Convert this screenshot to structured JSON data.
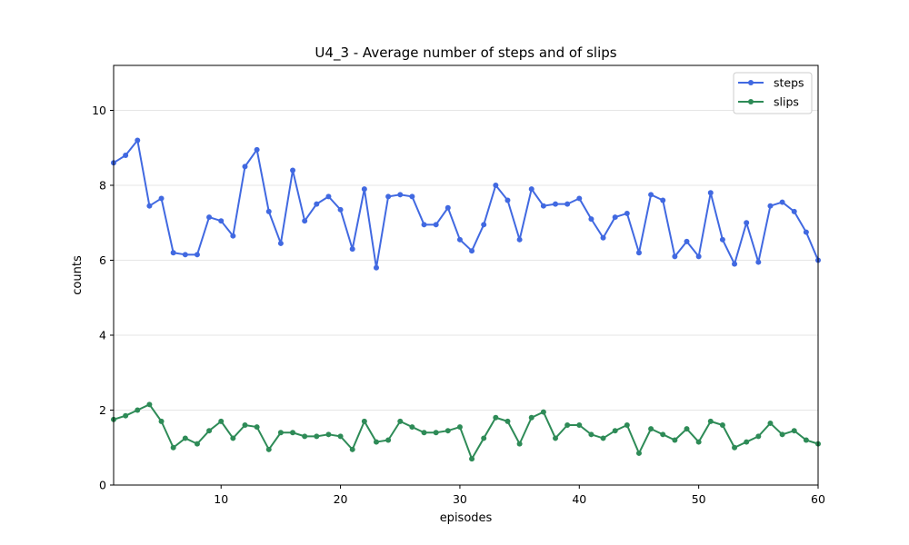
{
  "chart_data": {
    "type": "line",
    "title": "U4_3 - Average number of steps and of slips",
    "xlabel": "episodes",
    "ylabel": "counts",
    "xlim": [
      1,
      60
    ],
    "ylim": [
      0,
      11.2
    ],
    "xticks": [
      10,
      20,
      30,
      40,
      50,
      60
    ],
    "yticks": [
      0,
      2,
      4,
      6,
      8,
      10
    ],
    "grid": "horizontal",
    "legend_position": "top-right",
    "x": [
      1,
      2,
      3,
      4,
      5,
      6,
      7,
      8,
      9,
      10,
      11,
      12,
      13,
      14,
      15,
      16,
      17,
      18,
      19,
      20,
      21,
      22,
      23,
      24,
      25,
      26,
      27,
      28,
      29,
      30,
      31,
      32,
      33,
      34,
      35,
      36,
      37,
      38,
      39,
      40,
      41,
      42,
      43,
      44,
      45,
      46,
      47,
      48,
      49,
      50,
      51,
      52,
      53,
      54,
      55,
      56,
      57,
      58,
      59,
      60
    ],
    "series": [
      {
        "name": "steps",
        "color": "#4169e1",
        "values": [
          8.6,
          8.8,
          9.2,
          7.45,
          7.65,
          6.2,
          6.15,
          6.15,
          7.15,
          7.05,
          6.65,
          8.5,
          8.95,
          7.3,
          6.45,
          8.4,
          7.05,
          7.5,
          7.7,
          7.35,
          6.3,
          7.9,
          5.8,
          7.7,
          7.75,
          7.7,
          6.95,
          6.95,
          7.4,
          6.55,
          6.25,
          6.95,
          8.0,
          7.6,
          6.55,
          7.9,
          7.45,
          7.5,
          7.5,
          7.65,
          7.1,
          6.6,
          7.15,
          7.25,
          6.2,
          7.75,
          7.6,
          6.1,
          6.5,
          6.1,
          7.8,
          6.55,
          5.9,
          7.0,
          5.95,
          7.45,
          7.55,
          7.3,
          6.75,
          6.0
        ]
      },
      {
        "name": "slips",
        "color": "#2e8b57",
        "values": [
          1.75,
          1.85,
          2.0,
          2.15,
          1.7,
          1.0,
          1.25,
          1.1,
          1.45,
          1.7,
          1.25,
          1.6,
          1.55,
          0.95,
          1.4,
          1.4,
          1.3,
          1.3,
          1.35,
          1.3,
          0.95,
          1.7,
          1.15,
          1.2,
          1.7,
          1.55,
          1.4,
          1.4,
          1.45,
          1.55,
          0.7,
          1.25,
          1.8,
          1.7,
          1.1,
          1.8,
          1.95,
          1.25,
          1.6,
          1.6,
          1.35,
          1.25,
          1.45,
          1.6,
          0.85,
          1.5,
          1.35,
          1.2,
          1.5,
          1.15,
          1.7,
          1.6,
          1.0,
          1.15,
          1.3,
          1.65,
          1.35,
          1.45,
          1.2,
          1.1
        ]
      }
    ]
  }
}
